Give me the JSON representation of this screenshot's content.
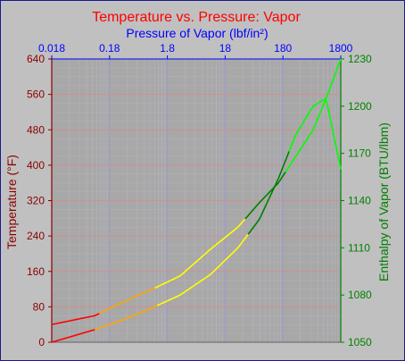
{
  "chart_data": {
    "type": "line",
    "title": "Temperature vs. Pressure: Vapor",
    "x_top_label": "Pressure of Vapor (lbf/in²)",
    "y_left_label": "Temperature (°F)",
    "y_right_label": "Enthalpy of Vapor (BTU/lbm)",
    "x_scale": "log",
    "x_range": [
      0.018,
      1800
    ],
    "x_ticks": [
      "0.018",
      "0.18",
      "1.8",
      "18",
      "180",
      "1800"
    ],
    "y_left_range": [
      0,
      640
    ],
    "y_left_ticks": [
      "0",
      "80",
      "160",
      "240",
      "320",
      "400",
      "480",
      "560",
      "640"
    ],
    "y_right_range": [
      1050,
      1230
    ],
    "y_right_ticks": [
      "1050",
      "1080",
      "1110",
      "1140",
      "1170",
      "1200",
      "1230"
    ],
    "grid": true,
    "colors": {
      "title": "#ff0000",
      "x_axis": "#0000ff",
      "y_left": "#8b0000",
      "y_right": "#008000",
      "plot_bg": "#a8a8a8",
      "grid_major_x": "#9a9acc",
      "grid_major_y": "#d09090",
      "seg_red": "#ff0000",
      "seg_orange": "#ffa500",
      "seg_yellow": "#ffff00",
      "seg_darkgreen": "#008000",
      "seg_green": "#00ff00"
    },
    "series": [
      {
        "axis": "left",
        "x": [
          0.018,
          0.1,
          0.3,
          1.0,
          3.0,
          10,
          30,
          70,
          150,
          300,
          600,
          1000,
          1800
        ],
        "y": [
          40,
          60,
          90,
          120,
          150,
          210,
          260,
          315,
          360,
          420,
          480,
          550,
          640
        ]
      },
      {
        "axis": "right",
        "x": [
          0.018,
          0.1,
          0.3,
          1.0,
          3.0,
          10,
          30,
          70,
          150,
          300,
          600,
          1000,
          1800
        ],
        "y": [
          1050,
          1058,
          1064,
          1072,
          1080,
          1093,
          1110,
          1128,
          1154,
          1182,
          1200,
          1205,
          1160
        ]
      }
    ]
  }
}
